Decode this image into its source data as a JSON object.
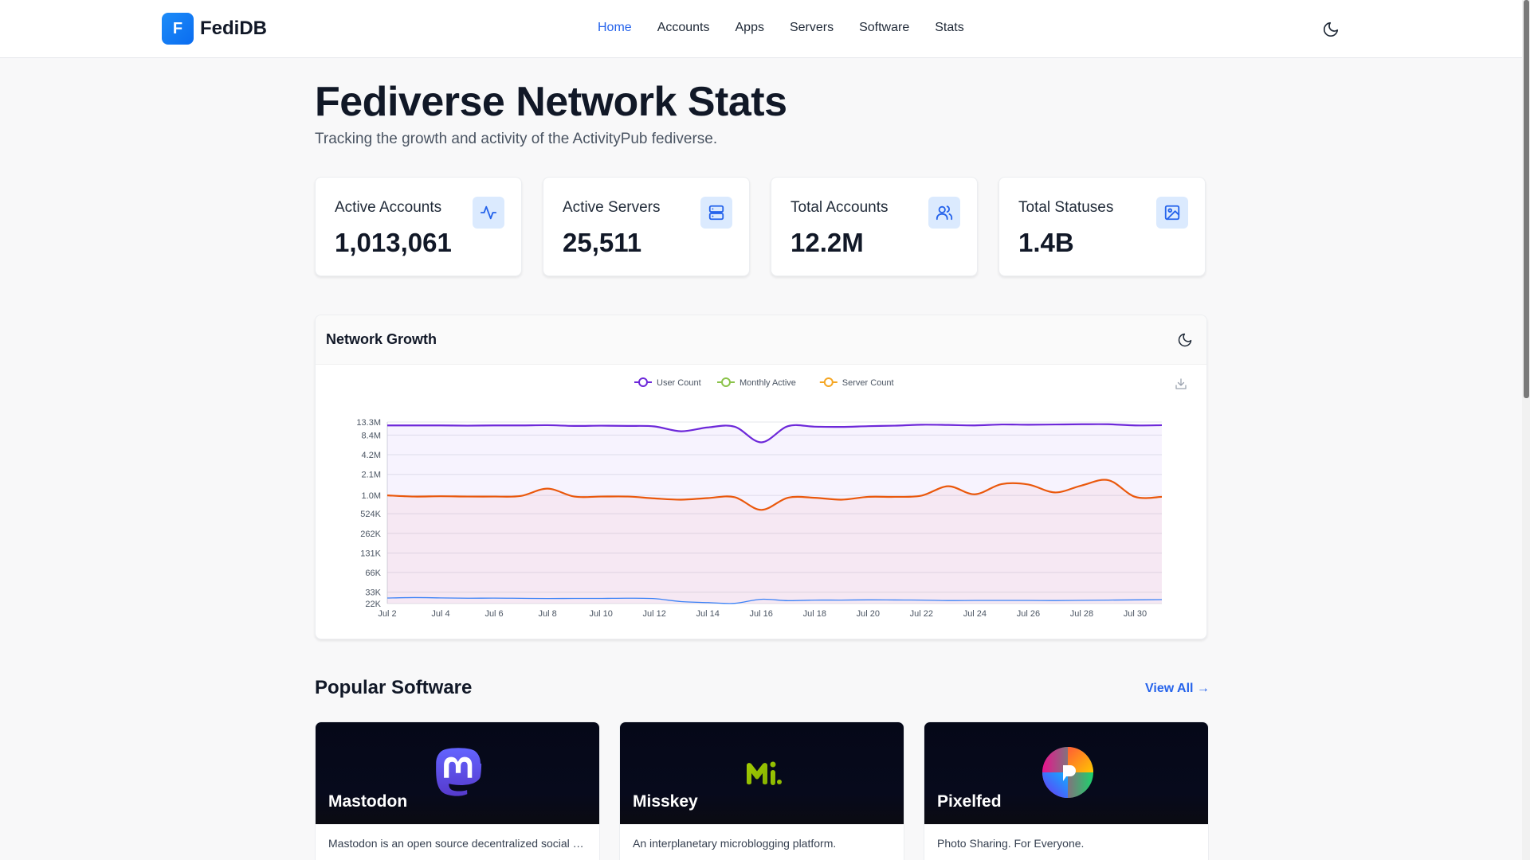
{
  "header": {
    "brand_letter": "F",
    "brand_name": "FediDB",
    "nav": [
      {
        "label": "Home",
        "active": true
      },
      {
        "label": "Accounts"
      },
      {
        "label": "Apps"
      },
      {
        "label": "Servers"
      },
      {
        "label": "Software"
      },
      {
        "label": "Stats"
      }
    ],
    "theme_icon": "moon-icon"
  },
  "hero": {
    "title": "Fediverse Network Stats",
    "subtitle": "Tracking the growth and activity of the ActivityPub fediverse."
  },
  "stats": [
    {
      "label": "Active Accounts",
      "value": "1,013,061",
      "icon": "activity-icon"
    },
    {
      "label": "Active Servers",
      "value": "25,511",
      "icon": "server-icon"
    },
    {
      "label": "Total Accounts",
      "value": "12.2M",
      "icon": "users-icon"
    },
    {
      "label": "Total Statuses",
      "value": "1.4B",
      "icon": "image-icon"
    }
  ],
  "chart_panel": {
    "title": "Network Growth",
    "toggle_icon": "moon-icon",
    "download_icon": "download-icon"
  },
  "chart_data": {
    "type": "line",
    "log_scale": true,
    "grid": true,
    "legend_position": "top-center",
    "ytick_labels": [
      "13.3M",
      "8.4M",
      "4.2M",
      "2.1M",
      "1.0M",
      "524K",
      "262K",
      "131K",
      "66K",
      "33K",
      "22K"
    ],
    "ytick_values": [
      13300000,
      8400000,
      4200000,
      2100000,
      1000000,
      524000,
      262000,
      131000,
      66000,
      33000,
      22000
    ],
    "ylim": [
      22000,
      13300000
    ],
    "x": [
      "Jul 2",
      "Jul 3",
      "Jul 4",
      "Jul 5",
      "Jul 6",
      "Jul 7",
      "Jul 8",
      "Jul 9",
      "Jul 10",
      "Jul 11",
      "Jul 12",
      "Jul 13",
      "Jul 14",
      "Jul 15",
      "Jul 16",
      "Jul 17",
      "Jul 18",
      "Jul 19",
      "Jul 20",
      "Jul 21",
      "Jul 22",
      "Jul 23",
      "Jul 24",
      "Jul 25",
      "Jul 26",
      "Jul 27",
      "Jul 28",
      "Jul 29",
      "Jul 30",
      "Jul 31"
    ],
    "xtick_labels": [
      "Jul 2",
      "Jul 4",
      "Jul 6",
      "Jul 8",
      "Jul 10",
      "Jul 12",
      "Jul 14",
      "Jul 16",
      "Jul 18",
      "Jul 20",
      "Jul 22",
      "Jul 24",
      "Jul 26",
      "Jul 28",
      "Jul 30"
    ],
    "series": [
      {
        "name": "User Count",
        "color": "#6d28d9",
        "fill": "rgba(124,58,237,0.06)",
        "values": [
          11800000,
          11800000,
          11800000,
          11700000,
          11800000,
          11800000,
          11900000,
          11600000,
          11700000,
          11600000,
          11400000,
          9600000,
          11000000,
          11300000,
          6500000,
          11500000,
          11300000,
          11200000,
          11500000,
          11700000,
          12100000,
          12000000,
          11800000,
          12200000,
          12100000,
          12200000,
          12300000,
          12300000,
          11800000,
          11900000
        ]
      },
      {
        "name": "Monthly Active",
        "color": "#ea580c",
        "fill": "rgba(239,68,68,0.06)",
        "values": [
          1000000,
          960000,
          970000,
          960000,
          960000,
          980000,
          1270000,
          960000,
          960000,
          960000,
          900000,
          860000,
          910000,
          940000,
          600000,
          920000,
          920000,
          860000,
          950000,
          950000,
          990000,
          1380000,
          1040000,
          1490000,
          1470000,
          1110000,
          1420000,
          1710000,
          950000,
          950000
        ]
      },
      {
        "name": "Server Count",
        "color": "#3b82f6",
        "fill": "none",
        "values": [
          26800,
          27200,
          26900,
          26600,
          26700,
          26500,
          26300,
          26400,
          26400,
          26600,
          26200,
          23600,
          22800,
          22200,
          25600,
          24400,
          24900,
          24900,
          25100,
          25000,
          24900,
          24500,
          24600,
          24600,
          24600,
          24500,
          24700,
          24900,
          25100,
          25300
        ]
      }
    ]
  },
  "popular": {
    "title": "Popular Software",
    "view_all": "View All →",
    "items": [
      {
        "name": "Mastodon",
        "desc": "Mastodon is an open source decentralized social network - by the people for the people. Join the federation and take back control of your social media!",
        "logo": "mastodon-logo"
      },
      {
        "name": "Misskey",
        "desc": "An interplanetary microblogging platform.",
        "logo": "misskey-logo"
      },
      {
        "name": "Pixelfed",
        "desc": "Photo Sharing. For Everyone.",
        "logo": "pixelfed-logo"
      }
    ]
  }
}
